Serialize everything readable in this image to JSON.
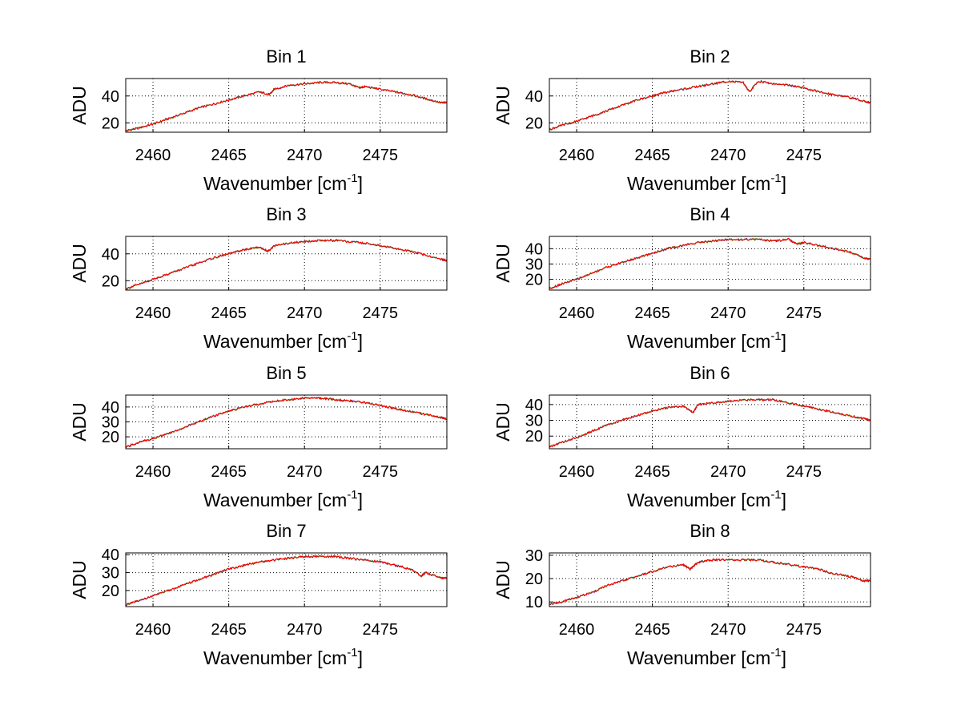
{
  "figure": {
    "background": "#ffffff"
  },
  "chart_data": [
    {
      "type": "line",
      "title": "Bin 1",
      "xlabel": "Wavenumber [cm",
      "xlabel_sup": "-1",
      "xlabel_end": "]",
      "ylabel": "ADU",
      "xlim": [
        2458.2,
        2479.4
      ],
      "ylim": [
        13,
        53
      ],
      "xticks": [
        2460,
        2465,
        2470,
        2475
      ],
      "yticks": [
        20,
        40
      ],
      "grid": true,
      "x": [
        2458.2,
        2459,
        2460,
        2461,
        2462,
        2463,
        2464,
        2465,
        2466,
        2467,
        2467.7,
        2468,
        2469,
        2470,
        2471,
        2472,
        2473,
        2473.6,
        2474,
        2475,
        2476,
        2477,
        2478,
        2479,
        2479.4
      ],
      "series": [
        {
          "color": "#ff0000",
          "values": [
            14,
            16,
            19,
            23,
            27,
            31,
            34,
            37,
            40,
            43,
            41,
            45,
            48,
            49,
            50,
            50,
            49,
            46,
            47,
            45,
            43,
            41,
            38,
            35,
            35
          ]
        }
      ]
    },
    {
      "type": "line",
      "title": "Bin 2",
      "xlabel": "Wavenumber [cm",
      "xlabel_sup": "-1",
      "xlabel_end": "]",
      "ylabel": "ADU",
      "xlim": [
        2458.2,
        2479.4
      ],
      "ylim": [
        13,
        53
      ],
      "xticks": [
        2460,
        2465,
        2470,
        2475
      ],
      "yticks": [
        20,
        40
      ],
      "grid": true,
      "x": [
        2458.2,
        2459,
        2460,
        2461,
        2462,
        2463,
        2464,
        2465,
        2466,
        2467,
        2468,
        2469,
        2470,
        2471,
        2471.4,
        2472,
        2473,
        2474,
        2475,
        2476,
        2477,
        2478,
        2479,
        2479.4
      ],
      "series": [
        {
          "color": "#ff0000",
          "values": [
            15,
            18,
            21,
            25,
            29,
            33,
            37,
            40,
            43,
            45,
            47,
            49,
            51,
            50,
            43,
            51,
            49,
            48,
            46,
            43,
            41,
            39,
            36,
            35
          ]
        }
      ]
    },
    {
      "type": "line",
      "title": "Bin 3",
      "xlabel": "Wavenumber [cm",
      "xlabel_sup": "-1",
      "xlabel_end": "]",
      "ylabel": "ADU",
      "xlim": [
        2458.2,
        2479.4
      ],
      "ylim": [
        13,
        53
      ],
      "xticks": [
        2460,
        2465,
        2470,
        2475
      ],
      "yticks": [
        20,
        40
      ],
      "grid": true,
      "x": [
        2458.2,
        2459,
        2460,
        2461,
        2462,
        2463,
        2464,
        2465,
        2466,
        2467,
        2467.6,
        2468,
        2469,
        2470,
        2471,
        2472,
        2473,
        2474,
        2475,
        2476,
        2477,
        2478,
        2479,
        2479.4
      ],
      "series": [
        {
          "color": "#ff0000",
          "values": [
            14,
            17,
            21,
            25,
            29,
            33,
            37,
            40,
            43,
            45,
            42,
            46,
            48,
            49,
            50,
            50,
            49,
            48,
            46,
            44,
            42,
            39,
            36,
            35
          ]
        }
      ]
    },
    {
      "type": "line",
      "title": "Bin 4",
      "xlabel": "Wavenumber [cm",
      "xlabel_sup": "-1",
      "xlabel_end": "]",
      "ylabel": "ADU",
      "xlim": [
        2458.2,
        2479.4
      ],
      "ylim": [
        13,
        48
      ],
      "xticks": [
        2460,
        2465,
        2470,
        2475
      ],
      "yticks": [
        20,
        30,
        40
      ],
      "grid": true,
      "x": [
        2458.2,
        2459,
        2460,
        2461,
        2462,
        2463,
        2464,
        2465,
        2466,
        2467,
        2468,
        2469,
        2470,
        2471,
        2472,
        2473,
        2474,
        2474.5,
        2475,
        2476,
        2477,
        2478,
        2479,
        2479.4
      ],
      "series": [
        {
          "color": "#ff0000",
          "values": [
            14,
            17,
            20,
            24,
            28,
            31,
            34,
            37,
            40,
            42,
            44,
            45,
            46,
            46,
            46,
            45,
            46,
            43,
            44,
            42,
            40,
            38,
            34,
            33
          ]
        }
      ]
    },
    {
      "type": "line",
      "title": "Bin 5",
      "xlabel": "Wavenumber [cm",
      "xlabel_sup": "-1",
      "xlabel_end": "]",
      "ylabel": "ADU",
      "xlim": [
        2458.2,
        2479.4
      ],
      "ylim": [
        12,
        48
      ],
      "xticks": [
        2460,
        2465,
        2470,
        2475
      ],
      "yticks": [
        20,
        30,
        40
      ],
      "grid": true,
      "x": [
        2458.2,
        2459,
        2460,
        2461,
        2462,
        2463,
        2464,
        2465,
        2466,
        2467,
        2468,
        2469,
        2470,
        2471,
        2472,
        2473,
        2474,
        2475,
        2476,
        2477,
        2478,
        2479,
        2479.4
      ],
      "series": [
        {
          "color": "#ff0000",
          "values": [
            13,
            16,
            19,
            22,
            26,
            30,
            34,
            37,
            40,
            42,
            44,
            45,
            46,
            46,
            45,
            44,
            43,
            41,
            39,
            37,
            35,
            33,
            32
          ]
        }
      ]
    },
    {
      "type": "line",
      "title": "Bin 6",
      "xlabel": "Wavenumber [cm",
      "xlabel_sup": "-1",
      "xlabel_end": "]",
      "ylabel": "ADU",
      "xlim": [
        2458.2,
        2479.4
      ],
      "ylim": [
        12,
        46
      ],
      "xticks": [
        2460,
        2465,
        2470,
        2475
      ],
      "yticks": [
        20,
        30,
        40
      ],
      "grid": true,
      "x": [
        2458.2,
        2459,
        2460,
        2461,
        2462,
        2463,
        2464,
        2465,
        2466,
        2467,
        2467.7,
        2468,
        2469,
        2470,
        2471,
        2472,
        2473,
        2474,
        2475,
        2476,
        2477,
        2478,
        2479,
        2479.4
      ],
      "series": [
        {
          "color": "#ff0000",
          "values": [
            13,
            16,
            19,
            23,
            27,
            30,
            33,
            36,
            38,
            39,
            35,
            40,
            41,
            42,
            43,
            43,
            43,
            41,
            39,
            37,
            35,
            33,
            31,
            30
          ]
        }
      ]
    },
    {
      "type": "line",
      "title": "Bin 7",
      "xlabel": "Wavenumber [cm",
      "xlabel_sup": "-1",
      "xlabel_end": "]",
      "ylabel": "ADU",
      "xlim": [
        2458.2,
        2479.4
      ],
      "ylim": [
        11,
        41
      ],
      "xticks": [
        2460,
        2465,
        2470,
        2475
      ],
      "yticks": [
        20,
        30,
        40
      ],
      "grid": true,
      "x": [
        2458.2,
        2459,
        2460,
        2461,
        2462,
        2463,
        2464,
        2465,
        2466,
        2467,
        2468,
        2469,
        2470,
        2471,
        2472,
        2473,
        2474,
        2475,
        2476,
        2477,
        2477.7,
        2478,
        2479,
        2479.4
      ],
      "series": [
        {
          "color": "#ff0000",
          "values": [
            12,
            14,
            17,
            20,
            23,
            26,
            29,
            32,
            34,
            36,
            37,
            38,
            39,
            39,
            39,
            38,
            37,
            36,
            34,
            32,
            28,
            30,
            27,
            27
          ]
        }
      ]
    },
    {
      "type": "line",
      "title": "Bin 8",
      "xlabel": "Wavenumber [cm",
      "xlabel_sup": "-1",
      "xlabel_end": "]",
      "ylabel": "ADU",
      "xlim": [
        2458.2,
        2479.4
      ],
      "ylim": [
        8,
        31
      ],
      "xticks": [
        2460,
        2465,
        2470,
        2475
      ],
      "yticks": [
        10,
        20,
        30
      ],
      "grid": true,
      "x": [
        2458.2,
        2459,
        2460,
        2461,
        2462,
        2463,
        2464,
        2465,
        2466,
        2467,
        2467.5,
        2468,
        2469,
        2470,
        2471,
        2472,
        2473,
        2474,
        2475,
        2476,
        2477,
        2478,
        2479,
        2479.4
      ],
      "series": [
        {
          "color": "#ff0000",
          "values": [
            9,
            10,
            12,
            14,
            17,
            19,
            21,
            23,
            25,
            26,
            24,
            27,
            28,
            28,
            28,
            28,
            27,
            26,
            25,
            24,
            22,
            21,
            19,
            19
          ]
        }
      ]
    }
  ]
}
